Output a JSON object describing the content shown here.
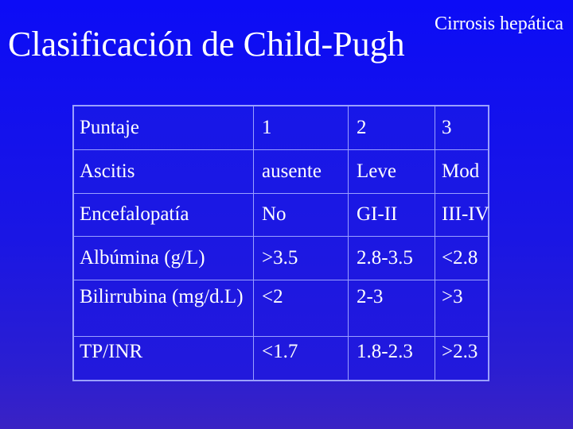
{
  "slide": {
    "title": "Clasificación de Child-Pugh",
    "subtitle": "Cirrosis hepática"
  },
  "table": {
    "rows": [
      [
        "Puntaje",
        "1",
        "2",
        "3"
      ],
      [
        "Ascitis",
        "ausente",
        "Leve",
        "Mod"
      ],
      [
        "Encefalopatía",
        "No",
        "GI-II",
        "III-IV"
      ],
      [
        "Albúmina (g/L)",
        ">3.5",
        "2.8-3.5",
        "<2.8"
      ],
      [
        "Bilirrubina (mg/d.L)",
        "<2",
        "2-3",
        ">3"
      ],
      [
        "TP/INR",
        "<1.7",
        "1.8-2.3",
        ">2.3"
      ]
    ]
  },
  "colors": {
    "background_top": "#0c0cf6",
    "background_bottom": "#3a22c4",
    "text": "#ffffff",
    "grid_lines": "#9aa0ff"
  }
}
